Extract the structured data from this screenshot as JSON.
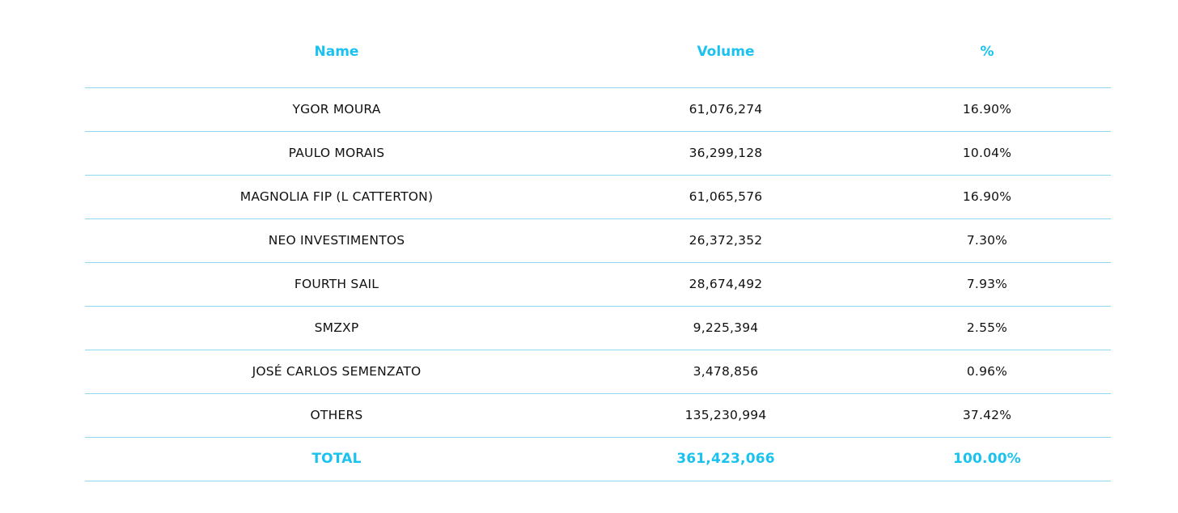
{
  "table": {
    "headers": {
      "name": "Name",
      "volume": "Volume",
      "percent": "%"
    },
    "rows": [
      {
        "name": "YGOR MOURA",
        "volume": "61,076,274",
        "percent": "16.90%"
      },
      {
        "name": "PAULO MORAIS",
        "volume": "36,299,128",
        "percent": "10.04%"
      },
      {
        "name": "MAGNOLIA FIP (L CATTERTON)",
        "volume": "61,065,576",
        "percent": "16.90%"
      },
      {
        "name": "NEO INVESTIMENTOS",
        "volume": "26,372,352",
        "percent": "7.30%"
      },
      {
        "name": "FOURTH SAIL",
        "volume": "28,674,492",
        "percent": "7.93%"
      },
      {
        "name": "SMZXP",
        "volume": "9,225,394",
        "percent": "2.55%"
      },
      {
        "name": "JOSÉ CARLOS SEMENZATO",
        "volume": "3,478,856",
        "percent": "0.96%"
      },
      {
        "name": "OTHERS",
        "volume": "135,230,994",
        "percent": "37.42%"
      }
    ],
    "total": {
      "name": "TOTAL",
      "volume": "361,423,066",
      "percent": "100.00%"
    }
  },
  "colors": {
    "accent": "#1bc2ef",
    "divider": "#8fd6ef",
    "text": "#111111"
  }
}
